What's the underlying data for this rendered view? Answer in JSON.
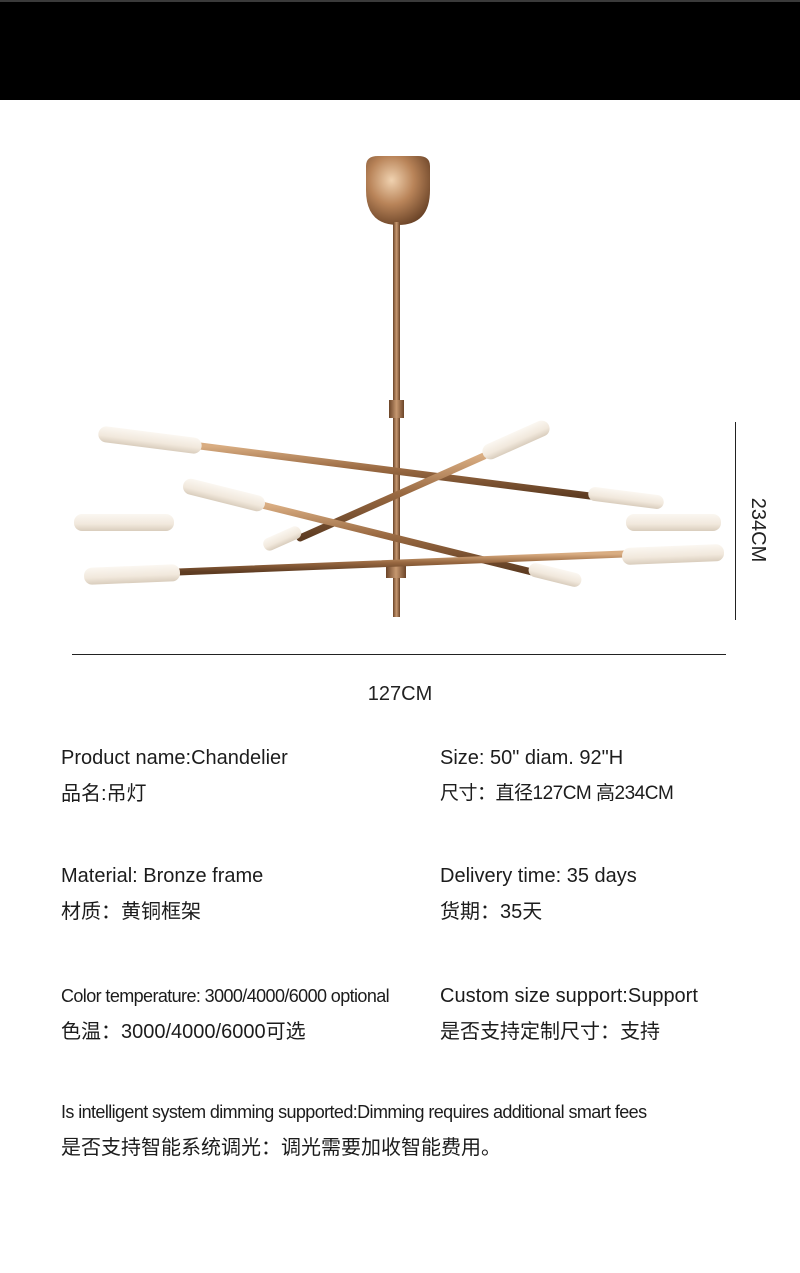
{
  "dimensions": {
    "width_label": "127CM",
    "height_label": "234CM"
  },
  "specs": {
    "product_name_en": "Product name:Chandelier",
    "product_name_zh": "品名:吊灯",
    "size_en": "Size: 50\" diam.  92\"H",
    "size_zh": "尺寸：直径127CM 高234CM",
    "material_en": "Material: Bronze frame",
    "material_zh": "材质：黄铜框架",
    "delivery_en": "Delivery time: 35 days",
    "delivery_zh": "货期：35天",
    "color_temp_en": "Color temperature: 3000/4000/6000 optional",
    "color_temp_zh": "色温：3000/4000/6000可选",
    "custom_size_en": "Custom size support:Support",
    "custom_size_zh": "是否支持定制尺寸：支持",
    "dimming_en": "Is intelligent system dimming supported:Dimming requires additional smart fees",
    "dimming_zh": "是否支持智能系统调光：调光需要加收智能费用。"
  },
  "colors": {
    "header_bar": "#000000",
    "bronze": "#a8774e",
    "bulb": "#f3ece2"
  }
}
